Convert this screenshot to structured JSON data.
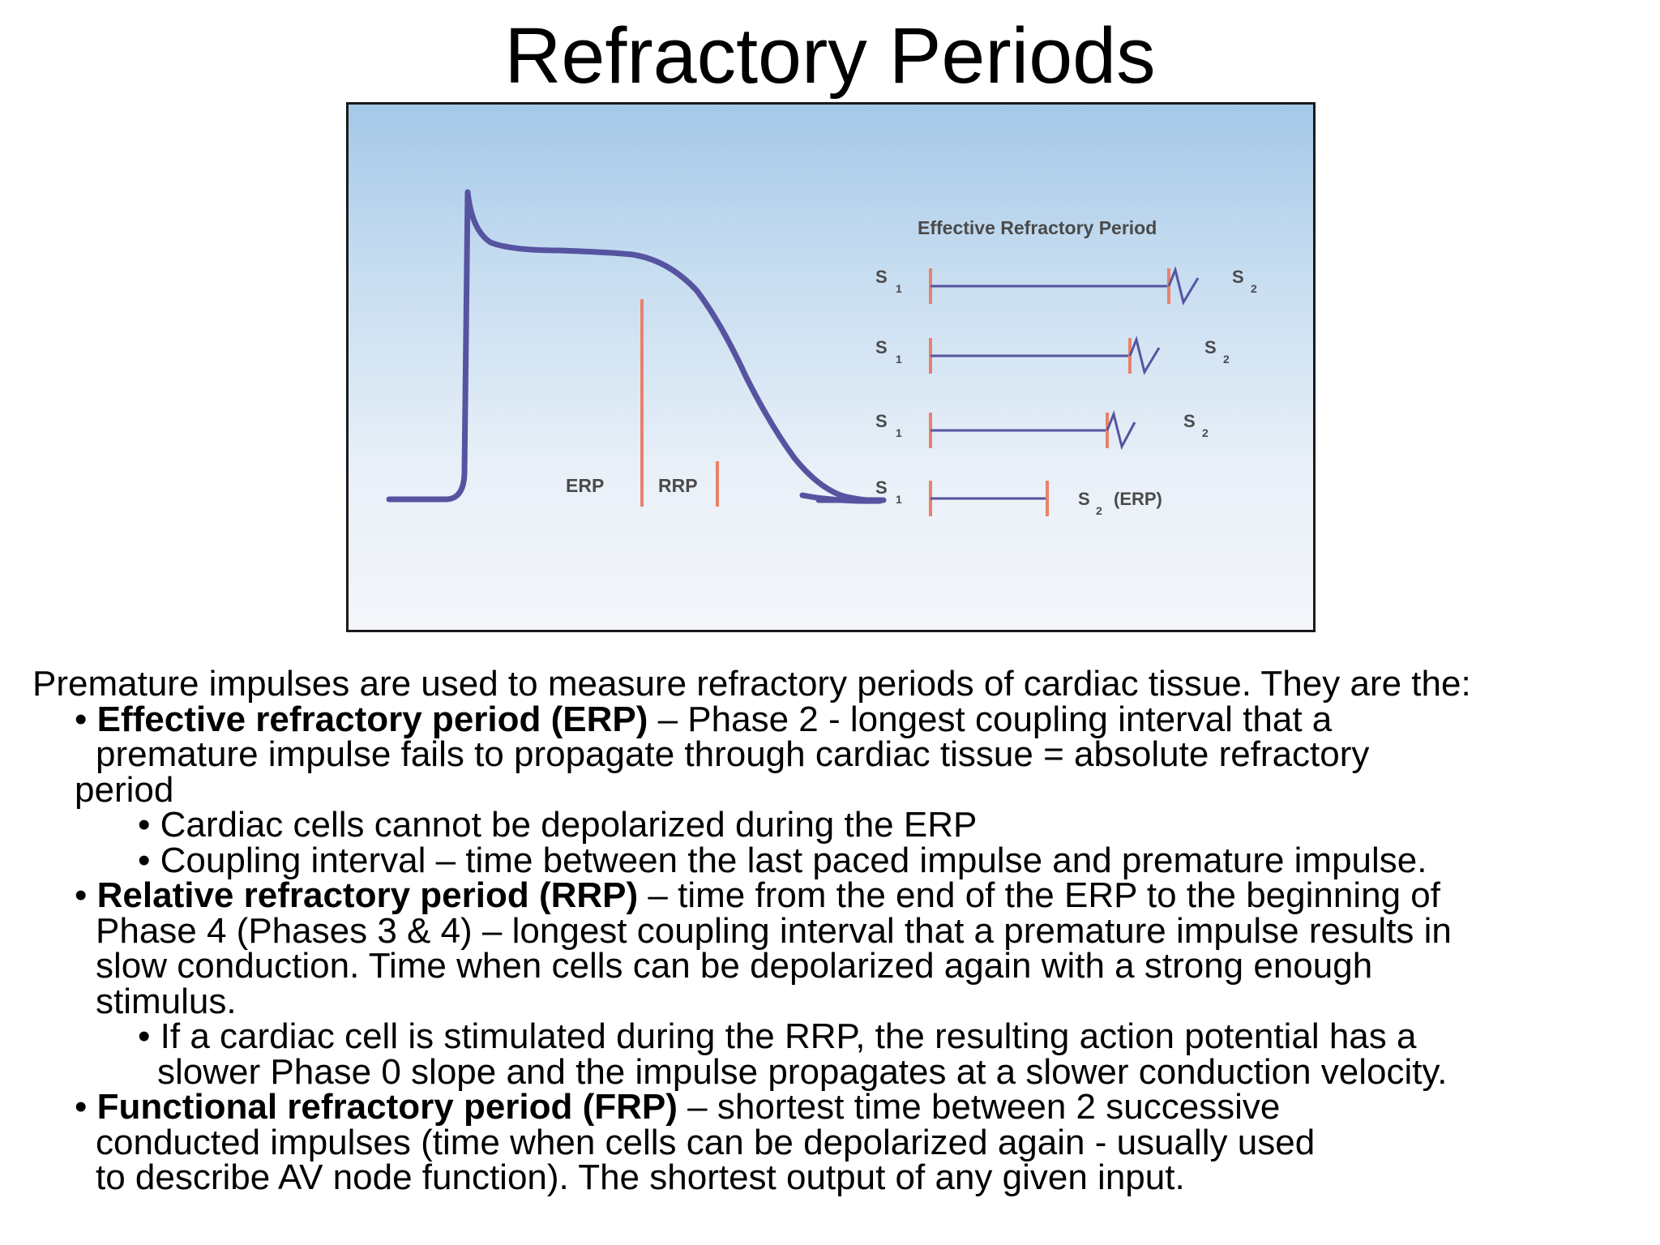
{
  "title": "Refractory Periods",
  "figure": {
    "ap_labels": {
      "erp": "ERP",
      "rrp": "RRP"
    },
    "protocol_title": "Effective Refractory Period",
    "rows": [
      {
        "s1": "S",
        "s1_sub": "1",
        "s2": "S",
        "s2_sub": "2",
        "s2_suffix": ""
      },
      {
        "s1": "S",
        "s1_sub": "1",
        "s2": "S",
        "s2_sub": "2",
        "s2_suffix": ""
      },
      {
        "s1": "S",
        "s1_sub": "1",
        "s2": "S",
        "s2_sub": "2",
        "s2_suffix": ""
      },
      {
        "s1": "S",
        "s1_sub": "1",
        "s2": "S",
        "s2_sub": "2",
        "s2_suffix": "(ERP)"
      }
    ],
    "colors": {
      "trace": "#5654a0",
      "marker": "#e8826a",
      "frame": "#1a1a1a",
      "bg_top": "#a4c8e8",
      "bg_bottom": "#f4f6fa"
    }
  },
  "body": {
    "intro": "Premature impulses are used to measure refractory periods of cardiac tissue. They are the:",
    "bullet": "•",
    "erp": {
      "term": "Effective refractory period (ERP)",
      "line1_rest": " – Phase 2 - longest coupling interval that a",
      "line2": "premature impulse fails to propagate through cardiac tissue = absolute refractory",
      "line3": "period",
      "sub1": "Cardiac cells cannot be depolarized during the ERP",
      "sub2": "Coupling interval – time between the last paced impulse and premature impulse."
    },
    "rrp": {
      "term": "Relative refractory period (RRP)",
      "line1_rest": " – time from the end of the ERP to the beginning of",
      "line2": "Phase 4 (Phases 3 & 4) – longest coupling interval that a premature impulse results in",
      "line3": "slow conduction. Time when cells can be depolarized again with a strong enough",
      "line4": "stimulus.",
      "sub1a": "If a cardiac cell is stimulated during the RRP, the resulting action potential has a",
      "sub1b": "slower Phase 0 slope and the impulse propagates at a slower conduction velocity."
    },
    "frp": {
      "term": "Functional refractory period (FRP)",
      "line1_rest": " – shortest time between 2 successive",
      "line2": "conducted impulses (time when cells can be depolarized again - usually used",
      "line3": "to describe AV node function). The shortest output of any given input."
    }
  }
}
